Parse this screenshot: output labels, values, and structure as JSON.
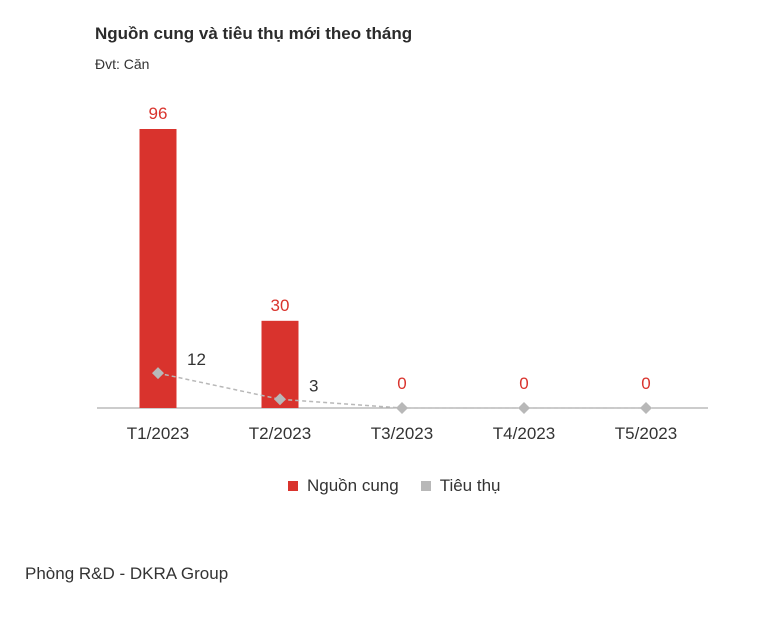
{
  "colors": {
    "supply": "#d9332d",
    "sold": "#b8b8b8",
    "axis": "#9a9a9a",
    "supply_label": "#d9332d",
    "sold_label": "#333333"
  },
  "chart_data": {
    "type": "bar",
    "title": "Nguồn cung và tiêu thụ mới theo tháng",
    "subtitle": "Đvt: Căn",
    "categories": [
      "T1/2023",
      "T2/2023",
      "T3/2023",
      "T4/2023",
      "T5/2023"
    ],
    "series": [
      {
        "name": "Nguồn cung",
        "type": "bar",
        "values": [
          96,
          30,
          0,
          0,
          0
        ]
      },
      {
        "name": "Tiêu thụ",
        "type": "line",
        "values": [
          12,
          3,
          0,
          0,
          0
        ]
      }
    ],
    "ylim": [
      0,
      96
    ],
    "grid": false,
    "legend": "bottom-center"
  },
  "footer": {
    "source": "Phòng R&D - DKRA Group"
  }
}
